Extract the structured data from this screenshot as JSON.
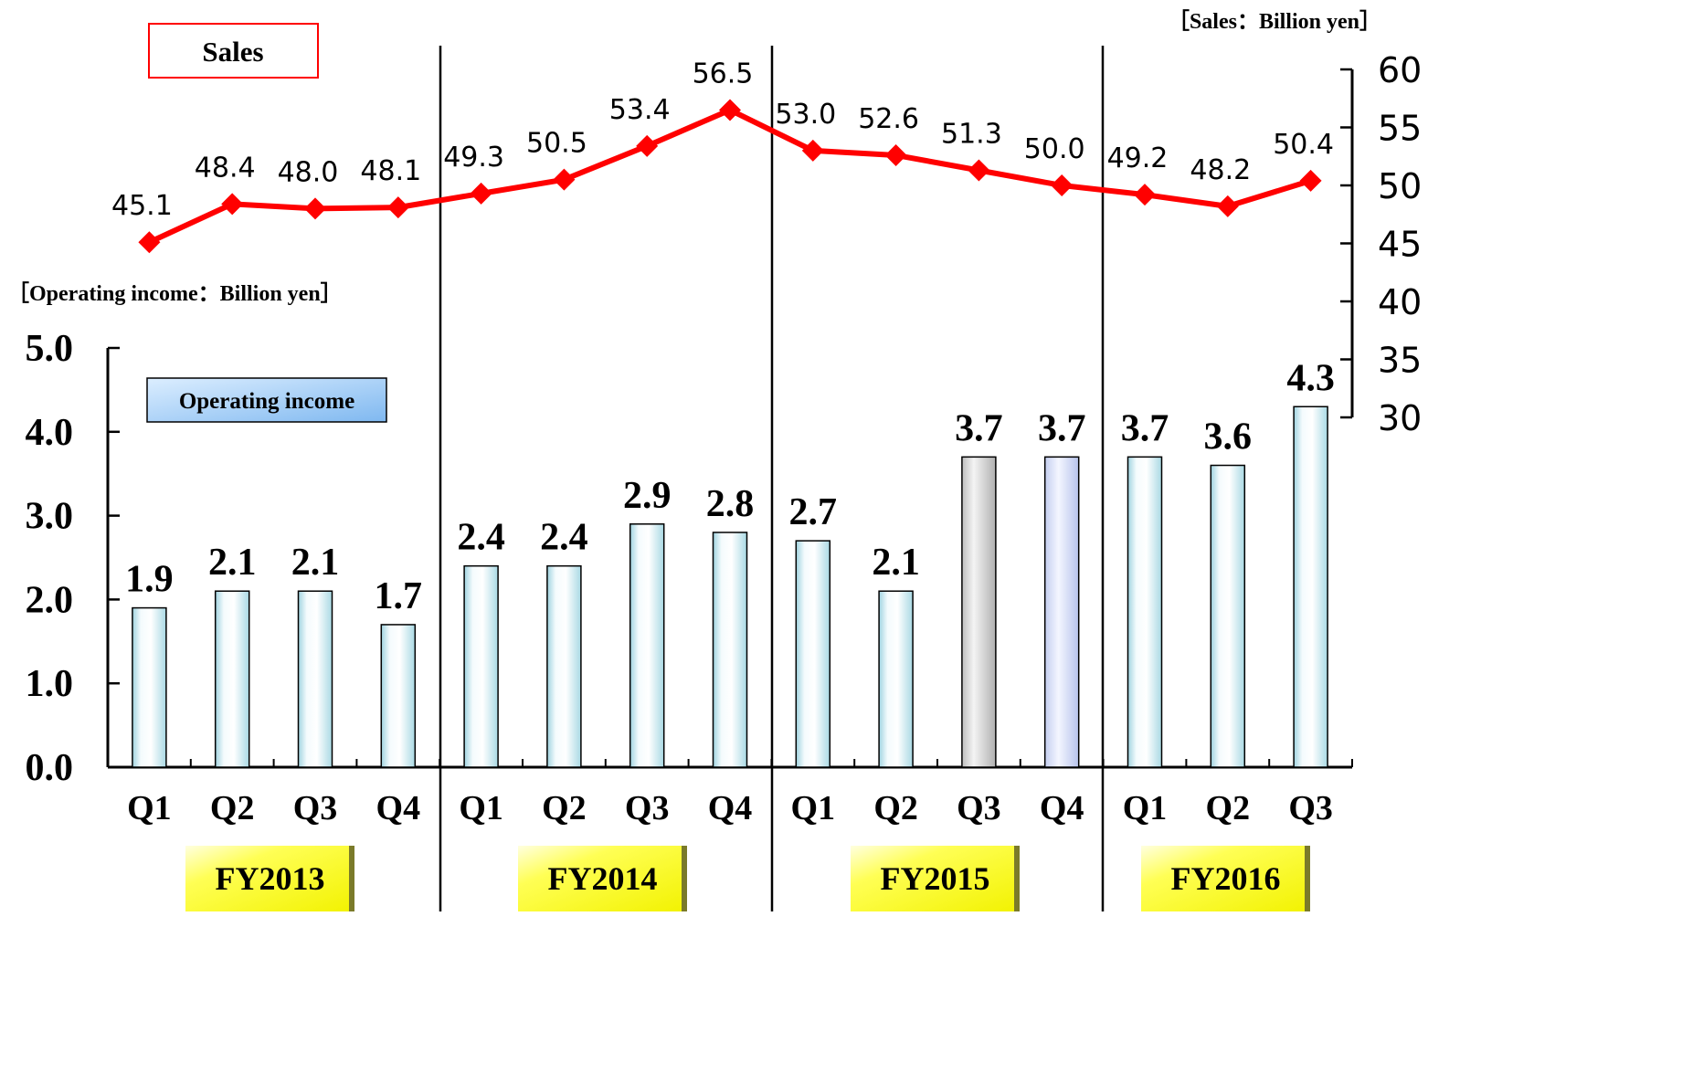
{
  "chart_data": {
    "type": "bar",
    "quarters": [
      "Q1",
      "Q2",
      "Q3",
      "Q4",
      "Q1",
      "Q2",
      "Q3",
      "Q4",
      "Q1",
      "Q2",
      "Q3",
      "Q4",
      "Q1",
      "Q2",
      "Q3"
    ],
    "fiscal_years": [
      "FY2013",
      "FY2014",
      "FY2015",
      "FY2016"
    ],
    "series": [
      {
        "name": "Operating income",
        "type": "bar",
        "axis": "left",
        "values": [
          1.9,
          2.1,
          2.1,
          1.7,
          2.4,
          2.4,
          2.9,
          2.8,
          2.7,
          2.1,
          3.7,
          3.7,
          3.7,
          3.6,
          4.3
        ],
        "labels": [
          "1.9",
          "2.1",
          "2.1",
          "1.7",
          "2.4",
          "2.4",
          "2.9",
          "2.8",
          "2.7",
          "2.1",
          "3.7",
          "3.7",
          "3.7",
          "3.6",
          "4.3"
        ]
      },
      {
        "name": "Sales",
        "type": "line",
        "axis": "right",
        "color": "#ff0000",
        "values": [
          45.1,
          48.4,
          48.0,
          48.1,
          49.3,
          50.5,
          53.4,
          56.5,
          53.0,
          52.6,
          51.3,
          50.0,
          49.2,
          48.2,
          50.4
        ],
        "labels": [
          "45.1",
          "48.4",
          "48.0",
          "48.1",
          "49.3",
          "50.5",
          "53.4",
          "56.5",
          "53.0",
          "52.6",
          "51.3",
          "50.0",
          "49.2",
          "48.2",
          "50.4"
        ]
      }
    ],
    "left_axis": {
      "label": "［Operating income：Billion yen］",
      "ticks": [
        "0.0",
        "1.0",
        "2.0",
        "3.0",
        "4.0",
        "5.0"
      ],
      "range": [
        0,
        5
      ]
    },
    "right_axis": {
      "label": "［Sales：Billion yen］",
      "ticks": [
        "30",
        "35",
        "40",
        "45",
        "50",
        "55",
        "60"
      ],
      "range": [
        30,
        60
      ]
    },
    "legend": {
      "bars": "Operating income",
      "line": "Sales"
    },
    "colors": {
      "line": "#ff0000",
      "bar_fill_light": "#ffffff",
      "bar_fill_dark": "#b8e0ea",
      "bar_highlight_q3_fy2015": "#c8c8c8",
      "bar_highlight_q4_fy2015": "#c8d4f0",
      "fy_box": "#ffff40",
      "legend_box": "#8ec5f5"
    }
  }
}
